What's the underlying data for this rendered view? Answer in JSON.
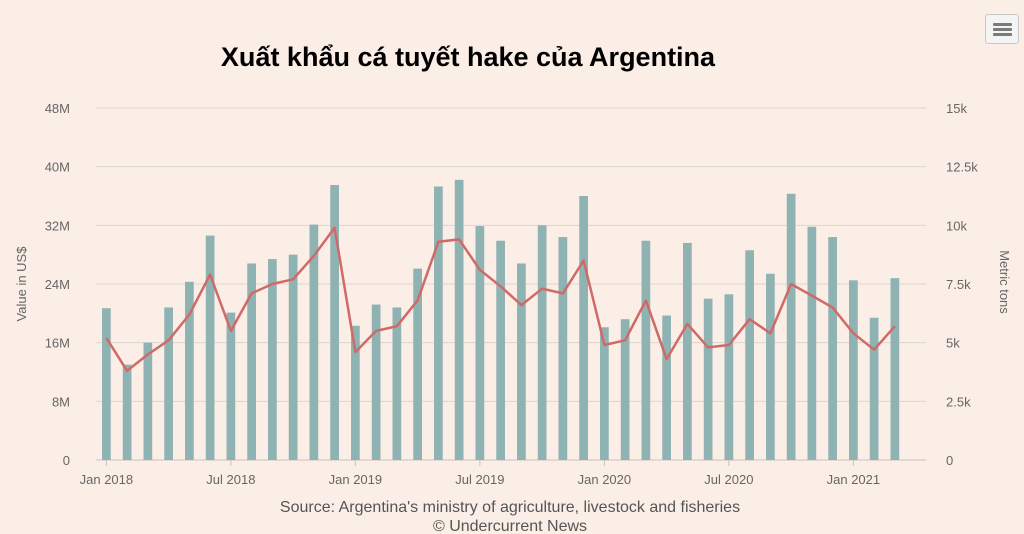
{
  "chart_data": {
    "type": "bar",
    "title": "Xuất khẩu cá tuyết hake của Argentina",
    "y_left_label": "Value in US$",
    "y_right_label": "Metric tons",
    "y_left_ticks": [
      "0",
      "8M",
      "16M",
      "24M",
      "32M",
      "40M",
      "48M"
    ],
    "y_left_lim": [
      0,
      48000000
    ],
    "y_right_ticks": [
      "0",
      "2.5k",
      "5k",
      "7.5k",
      "10k",
      "12.5k",
      "15k"
    ],
    "y_right_lim": [
      0,
      15000
    ],
    "x_tick_labels": [
      "Jan 2018",
      "Jul 2018",
      "Jan 2019",
      "Jul 2019",
      "Jan 2020",
      "Jul 2020",
      "Jan 2021"
    ],
    "x_tick_index": [
      0,
      6,
      12,
      18,
      24,
      30,
      36
    ],
    "categories": [
      "Jan 2018",
      "Feb 2018",
      "Mar 2018",
      "Apr 2018",
      "May 2018",
      "Jun 2018",
      "Jul 2018",
      "Aug 2018",
      "Sep 2018",
      "Oct 2018",
      "Nov 2018",
      "Dec 2018",
      "Jan 2019",
      "Feb 2019",
      "Mar 2019",
      "Apr 2019",
      "May 2019",
      "Jun 2019",
      "Jul 2019",
      "Aug 2019",
      "Sep 2019",
      "Oct 2019",
      "Nov 2019",
      "Dec 2019",
      "Jan 2020",
      "Feb 2020",
      "Mar 2020",
      "Apr 2020",
      "May 2020",
      "Jun 2020",
      "Jul 2020",
      "Aug 2020",
      "Sep 2020",
      "Oct 2020",
      "Nov 2020",
      "Dec 2020",
      "Jan 2021",
      "Feb 2021",
      "Mar 2021",
      "Apr 2021"
    ],
    "series": [
      {
        "axis": "left",
        "kind": "bar",
        "color": "#8fb2b2",
        "values": [
          20.7,
          13.0,
          16.0,
          20.8,
          24.3,
          30.6,
          20.1,
          26.8,
          27.4,
          28.0,
          32.1,
          37.5,
          18.3,
          21.2,
          20.8,
          26.1,
          37.3,
          38.2,
          31.9,
          29.9,
          26.8,
          32.0,
          30.4,
          36.0,
          18.1,
          19.2,
          29.9,
          19.7,
          29.6,
          22.0,
          22.6,
          28.6,
          25.4,
          36.3,
          31.8,
          30.4,
          24.5,
          19.4,
          24.8,
          0
        ]
      },
      {
        "axis": "right",
        "kind": "line",
        "color": "#cf6a68",
        "values": [
          5.2,
          3.8,
          4.5,
          5.1,
          6.2,
          7.9,
          5.5,
          7.1,
          7.5,
          7.7,
          8.7,
          9.9,
          4.6,
          5.5,
          5.7,
          6.8,
          9.3,
          9.4,
          8.1,
          7.4,
          6.6,
          7.3,
          7.1,
          8.5,
          4.9,
          5.1,
          6.8,
          4.3,
          5.8,
          4.8,
          4.9,
          6.0,
          5.4,
          7.5,
          7.0,
          6.5,
          5.4,
          4.7,
          5.7,
          null
        ]
      }
    ],
    "units": {
      "bar": "US$ millions",
      "line": "thousand metric tons"
    }
  },
  "footer": {
    "source": "Source: Argentina's ministry of agriculture, livestock and fisheries",
    "credit": "© Undercurrent News"
  },
  "colors": {
    "background": "#fbeee6",
    "grid": "#ddd6d0"
  }
}
